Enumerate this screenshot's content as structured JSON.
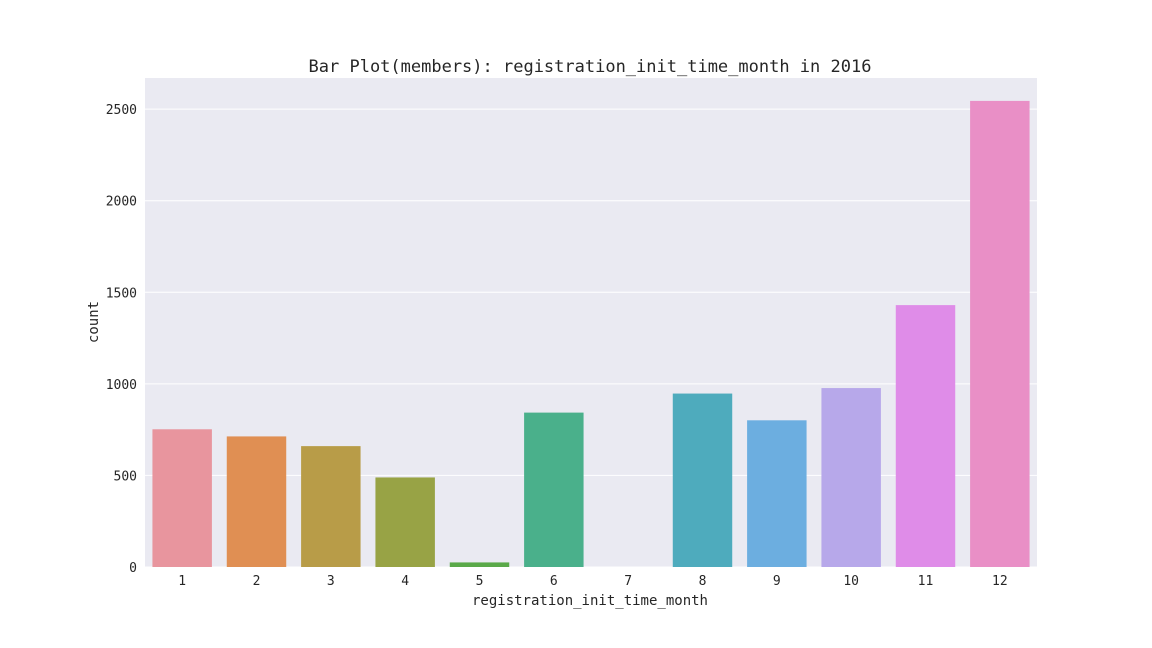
{
  "chart_data": {
    "type": "bar",
    "title": "Bar Plot(members): registration_init_time_month in 2016",
    "xlabel": "registration_init_time_month",
    "ylabel": "count",
    "categories": [
      "1",
      "2",
      "3",
      "4",
      "5",
      "6",
      "7",
      "8",
      "9",
      "10",
      "11",
      "12"
    ],
    "values": [
      752,
      713,
      660,
      489,
      25,
      843,
      0,
      947,
      801,
      977,
      1430,
      2545
    ],
    "colors": [
      "#e8959e",
      "#e08f53",
      "#b89c48",
      "#98a345",
      "#5aa949",
      "#4ab08b",
      "#4bada3",
      "#4eabbd",
      "#6caee0",
      "#b7a8ea",
      "#df8ce8",
      "#e98fc6"
    ],
    "yticks": [
      0,
      500,
      1000,
      1500,
      2000,
      2500
    ],
    "ylim": [
      0,
      2670
    ],
    "grid": true,
    "background": "#eaeaf2"
  }
}
